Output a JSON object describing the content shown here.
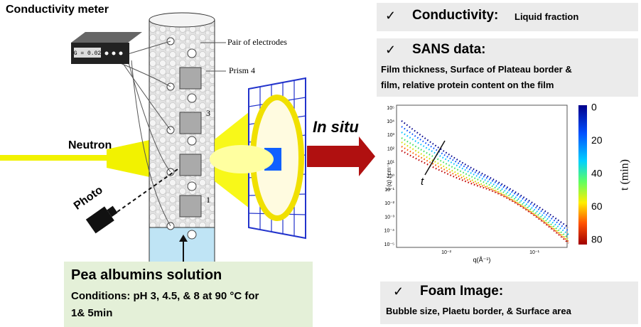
{
  "left": {
    "meter_title": "Conductivity meter",
    "meter_display": "G = 0.02",
    "electrodes_label": "Pair of electrodes",
    "prism_label": "Prism 4",
    "prism_numbers": [
      "3",
      "1"
    ],
    "neutron": "Neutron",
    "photo": "Photo",
    "in_situ": "In situ"
  },
  "solution": {
    "title": "Pea albumins solution",
    "lines": [
      "Conditions: pH 3, 4.5, & 8 at 90 °C for",
      "1& 5min"
    ]
  },
  "conductivity": {
    "check": "✓",
    "title": "Conductivity:",
    "detail": "Liquid fraction"
  },
  "sans": {
    "check": "✓",
    "title": "SANS data:",
    "lines": [
      "Film thickness, Surface of Plateau border &",
      "film, relative protein content on the film"
    ],
    "plot": {
      "ylabel": "I (q) / cm⁻¹",
      "xlabel": "q(Å⁻¹)",
      "yticks": [
        "10⁵",
        "10⁴",
        "10³",
        "10²",
        "10¹",
        "10⁰",
        "10⁻¹",
        "10⁻²",
        "10⁻³",
        "10⁻⁴",
        "10⁻⁵"
      ],
      "xticks": [
        "10⁻²",
        "10⁻¹"
      ],
      "arrow_label": "t",
      "colorbar_label": "t (min)",
      "colorbar_ticks": [
        "0",
        "20",
        "40",
        "60",
        "80"
      ]
    }
  },
  "foam": {
    "check": "✓",
    "title": "Foam Image:",
    "detail": "Bubble size, Plaetu border, & Surface area"
  }
}
